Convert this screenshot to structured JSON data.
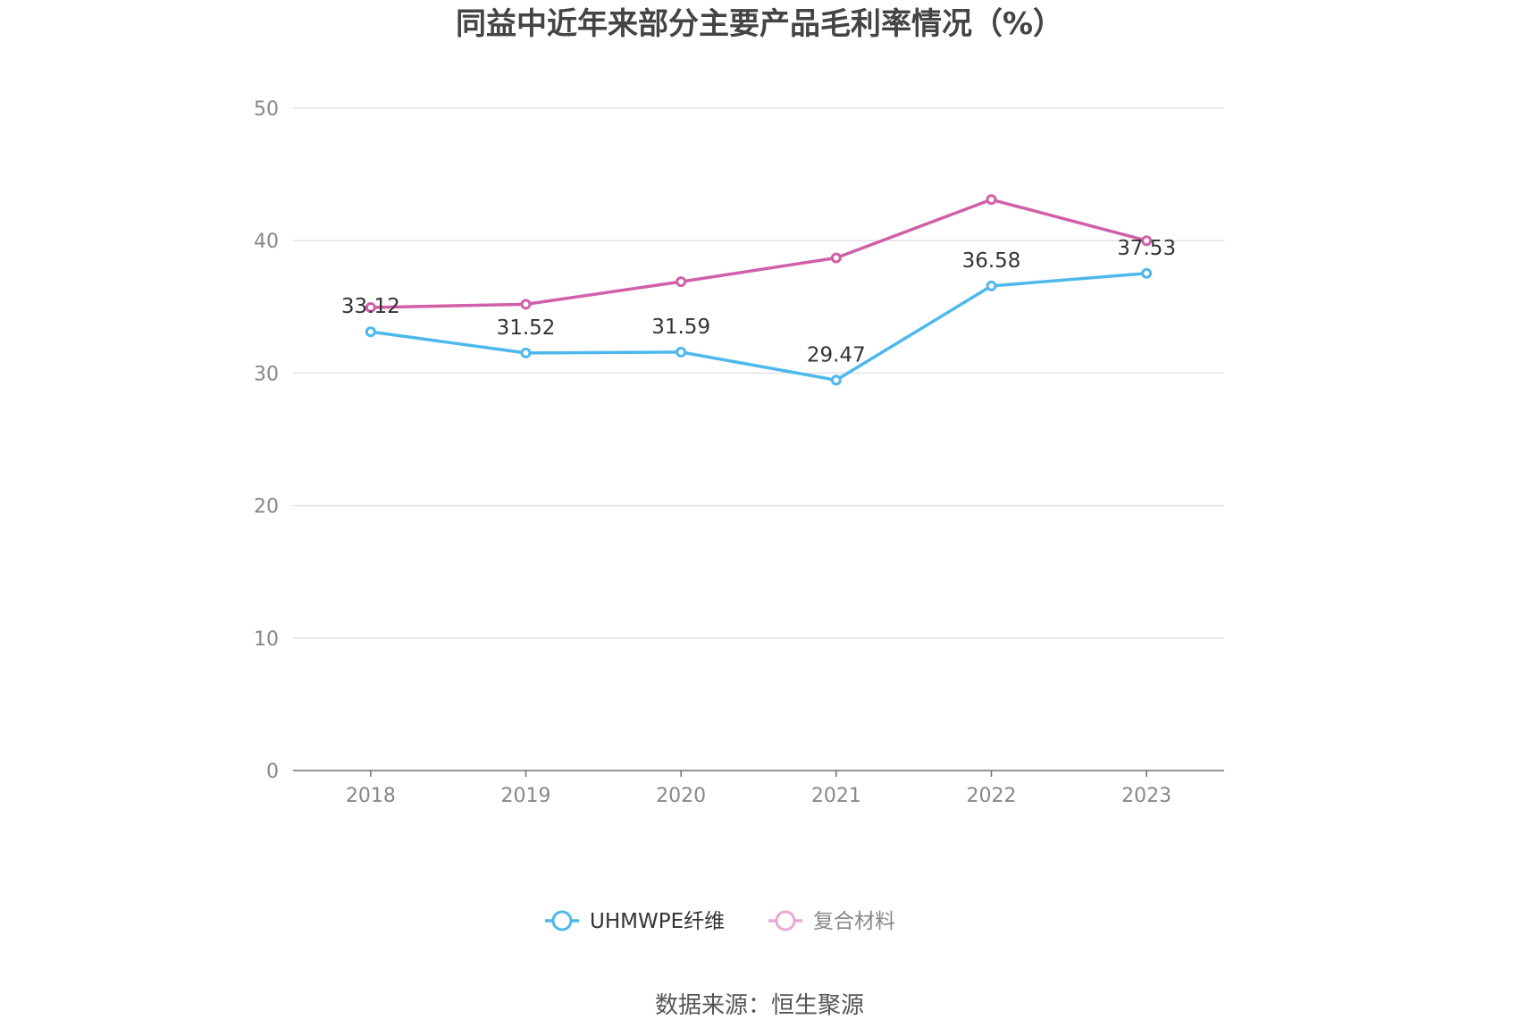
{
  "chart_data": {
    "type": "line",
    "title": "同益中近年来部分主要产品毛利率情况（%）",
    "xlabel": "",
    "ylabel": "",
    "categories": [
      "2018",
      "2019",
      "2020",
      "2021",
      "2022",
      "2023"
    ],
    "ylim": [
      0,
      50
    ],
    "yticks": [
      "0",
      "10",
      "20",
      "30",
      "40",
      "50"
    ],
    "grid": true,
    "legend_position": "bottom",
    "series": [
      {
        "name": "UHMWPE纤维",
        "color": "#4db8ec",
        "values": [
          33.12,
          31.52,
          31.59,
          29.47,
          36.58,
          37.53
        ],
        "labels": [
          "33.12",
          "31.52",
          "31.59",
          "29.47",
          "36.58",
          "37.53"
        ]
      },
      {
        "name": "复合材料",
        "color": "#d060a8",
        "values": [
          34.95,
          35.2,
          36.9,
          38.7,
          43.1,
          40.0
        ],
        "labels": []
      }
    ],
    "source": "数据来源：恒生聚源"
  }
}
